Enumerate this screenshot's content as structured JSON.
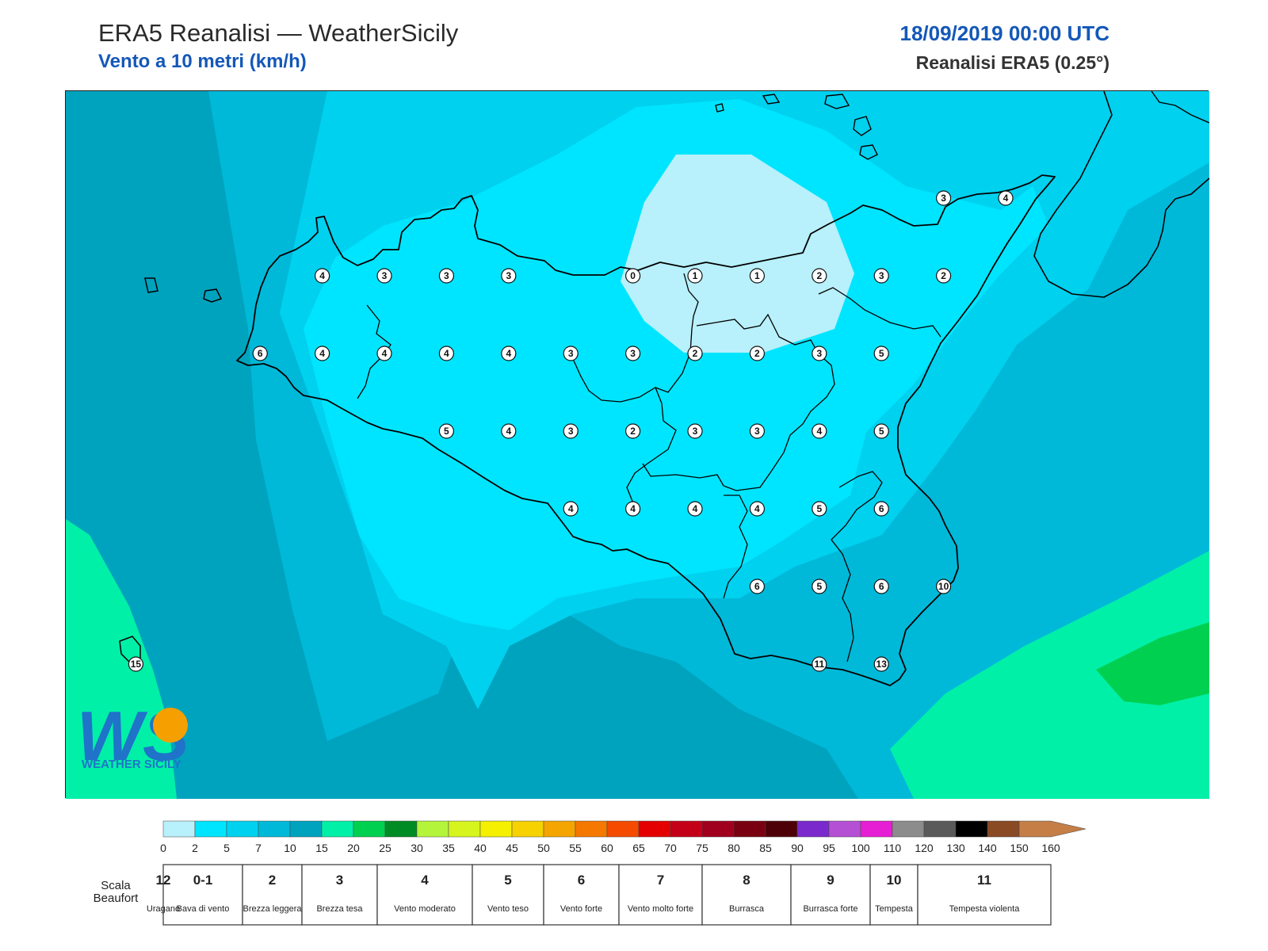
{
  "header": {
    "title": "ERA5 Reanalisi — WeatherSicily",
    "subtitle": "Vento a 10 metri (km/h)",
    "datetime": "18/09/2019 00:00 UTC",
    "source": "Reanalisi ERA5 (0.25°)"
  },
  "logo": {
    "text": "WEATHER SICILY",
    "letters": "WS"
  },
  "map": {
    "station_values": [
      {
        "label": "3",
        "row": 0,
        "col": 14
      },
      {
        "label": "4",
        "row": 0,
        "col": 15
      },
      {
        "label": "4",
        "row": 1,
        "col": 4
      },
      {
        "label": "3",
        "row": 1,
        "col": 5
      },
      {
        "label": "3",
        "row": 1,
        "col": 6
      },
      {
        "label": "3",
        "row": 1,
        "col": 7
      },
      {
        "label": "0",
        "row": 1,
        "col": 9
      },
      {
        "label": "1",
        "row": 1,
        "col": 10
      },
      {
        "label": "1",
        "row": 1,
        "col": 11
      },
      {
        "label": "2",
        "row": 1,
        "col": 12
      },
      {
        "label": "3",
        "row": 1,
        "col": 13
      },
      {
        "label": "2",
        "row": 1,
        "col": 14
      },
      {
        "label": "6",
        "row": 2,
        "col": 3
      },
      {
        "label": "4",
        "row": 2,
        "col": 4
      },
      {
        "label": "4",
        "row": 2,
        "col": 5
      },
      {
        "label": "4",
        "row": 2,
        "col": 6
      },
      {
        "label": "4",
        "row": 2,
        "col": 7
      },
      {
        "label": "3",
        "row": 2,
        "col": 8
      },
      {
        "label": "3",
        "row": 2,
        "col": 9
      },
      {
        "label": "2",
        "row": 2,
        "col": 10
      },
      {
        "label": "2",
        "row": 2,
        "col": 11
      },
      {
        "label": "3",
        "row": 2,
        "col": 12
      },
      {
        "label": "5",
        "row": 2,
        "col": 13
      },
      {
        "label": "5",
        "row": 3,
        "col": 6
      },
      {
        "label": "4",
        "row": 3,
        "col": 7
      },
      {
        "label": "3",
        "row": 3,
        "col": 8
      },
      {
        "label": "2",
        "row": 3,
        "col": 9
      },
      {
        "label": "3",
        "row": 3,
        "col": 10
      },
      {
        "label": "3",
        "row": 3,
        "col": 11
      },
      {
        "label": "4",
        "row": 3,
        "col": 12
      },
      {
        "label": "5",
        "row": 3,
        "col": 13
      },
      {
        "label": "4",
        "row": 4,
        "col": 8
      },
      {
        "label": "4",
        "row": 4,
        "col": 9
      },
      {
        "label": "4",
        "row": 4,
        "col": 10
      },
      {
        "label": "4",
        "row": 4,
        "col": 11
      },
      {
        "label": "5",
        "row": 4,
        "col": 12
      },
      {
        "label": "6",
        "row": 4,
        "col": 13
      },
      {
        "label": "6",
        "row": 5,
        "col": 11
      },
      {
        "label": "5",
        "row": 5,
        "col": 12
      },
      {
        "label": "6",
        "row": 5,
        "col": 13
      },
      {
        "label": "10",
        "row": 5,
        "col": 14
      },
      {
        "label": "15",
        "row": 6,
        "col": 1
      },
      {
        "label": "11",
        "row": 6,
        "col": 12
      },
      {
        "label": "13",
        "row": 6,
        "col": 13
      }
    ]
  },
  "colorbar": {
    "ticks": [
      "0",
      "2",
      "5",
      "7",
      "10",
      "15",
      "20",
      "25",
      "30",
      "35",
      "40",
      "45",
      "50",
      "55",
      "60",
      "65",
      "70",
      "75",
      "80",
      "85",
      "90",
      "95",
      "100",
      "110",
      "120",
      "130",
      "140",
      "150",
      "160"
    ],
    "colors": [
      "#b8f0fb",
      "#00e5ff",
      "#00d1ef",
      "#00b9d9",
      "#00a3be",
      "#00f0a8",
      "#00d050",
      "#008c24",
      "#b4f53c",
      "#d6f51e",
      "#f5f000",
      "#f5d200",
      "#f5a500",
      "#f57800",
      "#f54b00",
      "#e40000",
      "#c40018",
      "#a0001e",
      "#780010",
      "#4e0008",
      "#7a2acc",
      "#b450d4",
      "#e61ed4",
      "#8c8c8c",
      "#5a5a5a",
      "#000000",
      "#8a4a24",
      "#c47e46"
    ]
  },
  "beaufort": {
    "caption": "Scala Beaufort",
    "classes": [
      {
        "num": "0-1",
        "desc": "Bava di vento"
      },
      {
        "num": "2",
        "desc": "Brezza leggera"
      },
      {
        "num": "3",
        "desc": "Brezza tesa"
      },
      {
        "num": "4",
        "desc": "Vento moderato"
      },
      {
        "num": "5",
        "desc": "Vento teso"
      },
      {
        "num": "6",
        "desc": "Vento forte"
      },
      {
        "num": "7",
        "desc": "Vento molto forte"
      },
      {
        "num": "8",
        "desc": "Burrasca"
      },
      {
        "num": "9",
        "desc": "Burrasca forte"
      },
      {
        "num": "10",
        "desc": "Tempesta"
      },
      {
        "num": "11",
        "desc": "Tempesta violenta"
      },
      {
        "num": "12",
        "desc": "Uragano"
      }
    ]
  }
}
